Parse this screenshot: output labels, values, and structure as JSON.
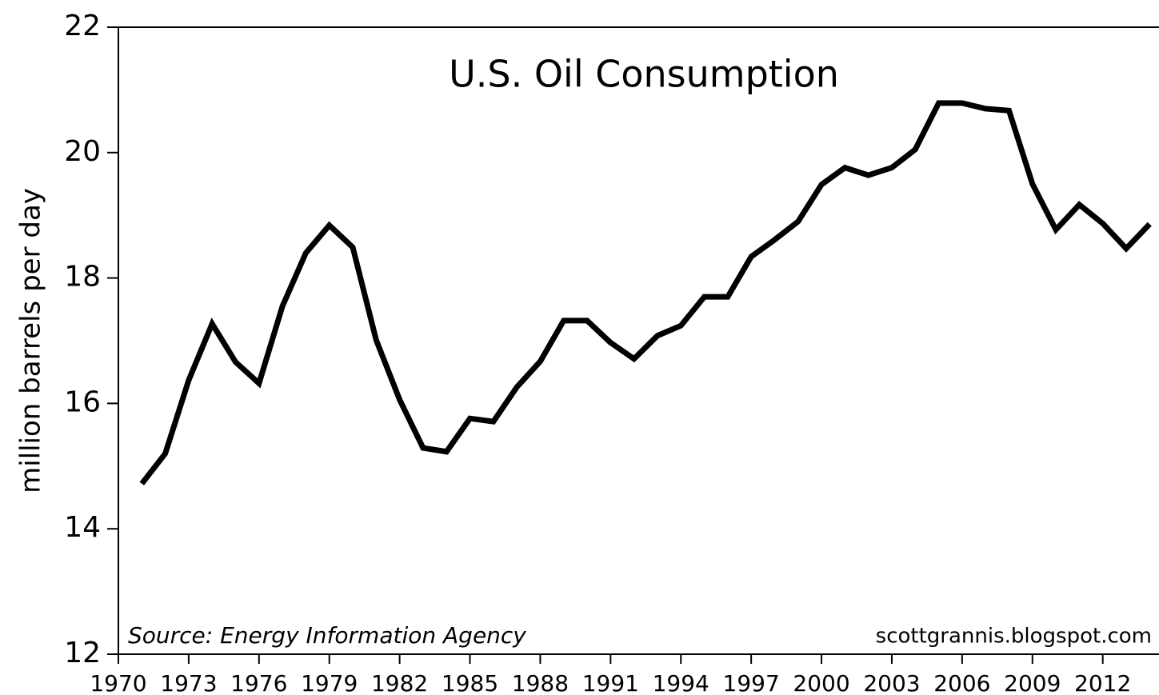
{
  "chart_data": {
    "type": "line",
    "title": "U.S. Oil Consumption",
    "y_label": "million barrels per day",
    "annotations": [
      "Source: Energy Information Agency",
      "scottgrannis.blogspot.com"
    ],
    "x": [
      1971,
      1972,
      1973,
      1974,
      1975,
      1976,
      1977,
      1978,
      1979,
      1980,
      1981,
      1982,
      1983,
      1984,
      1985,
      1986,
      1987,
      1988,
      1989,
      1990,
      1991,
      1992,
      1993,
      1994,
      1995,
      1996,
      1997,
      1998,
      1999,
      2000,
      2001,
      2002,
      2003,
      2004,
      2005,
      2006,
      2007,
      2008,
      2009,
      2010,
      2011,
      2012,
      2013,
      2014
    ],
    "series": [
      {
        "name": "U.S. Oil Consumption",
        "color": "#000000",
        "values": [
          14.72,
          15.2,
          16.37,
          17.27,
          16.66,
          16.32,
          17.55,
          18.4,
          18.84,
          18.49,
          17.01,
          16.06,
          15.29,
          15.23,
          15.76,
          15.71,
          16.26,
          16.67,
          17.32,
          17.32,
          16.97,
          16.71,
          17.08,
          17.24,
          17.7,
          17.7,
          18.34,
          18.61,
          18.9,
          19.49,
          19.76,
          19.64,
          19.76,
          20.05,
          20.79,
          20.79,
          20.7,
          20.67,
          19.5,
          18.77,
          19.17,
          18.87,
          18.47,
          18.86
        ]
      }
    ],
    "xlim": [
      1970,
      2014.4
    ],
    "xticks": [
      1970,
      1973,
      1976,
      1979,
      1982,
      1985,
      1988,
      1991,
      1994,
      1997,
      2000,
      2003,
      2006,
      2009,
      2012
    ],
    "ylim": [
      12,
      22
    ],
    "yticks": [
      12,
      14,
      16,
      18,
      20,
      22
    ]
  }
}
